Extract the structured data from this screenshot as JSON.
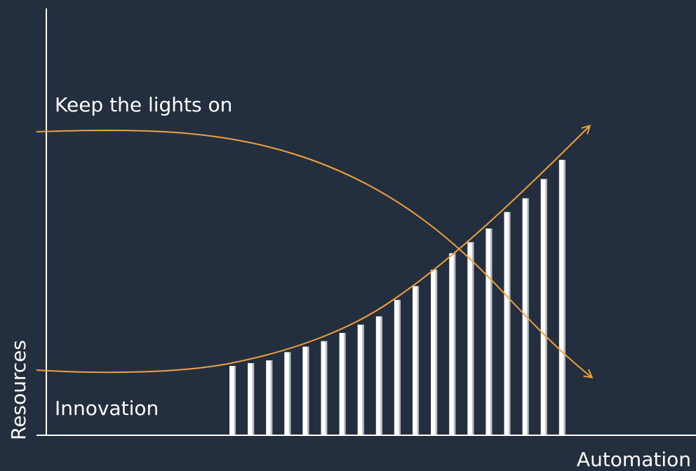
{
  "labels": {
    "top_curve": "Keep the lights on",
    "bottom_curve": "Innovation",
    "x_axis": "Automation",
    "y_axis": "Resources"
  },
  "colors": {
    "background": "#232f3e",
    "curve": "#f0a03c",
    "axis": "#ffffff",
    "bar_fill": "#ffffff",
    "bar_shade": "#b9bec6"
  },
  "bars": {
    "count": 19,
    "relative_heights": [
      0.25,
      0.26,
      0.27,
      0.3,
      0.32,
      0.34,
      0.37,
      0.4,
      0.43,
      0.49,
      0.54,
      0.6,
      0.66,
      0.7,
      0.75,
      0.81,
      0.86,
      0.93,
      1.0
    ]
  }
}
